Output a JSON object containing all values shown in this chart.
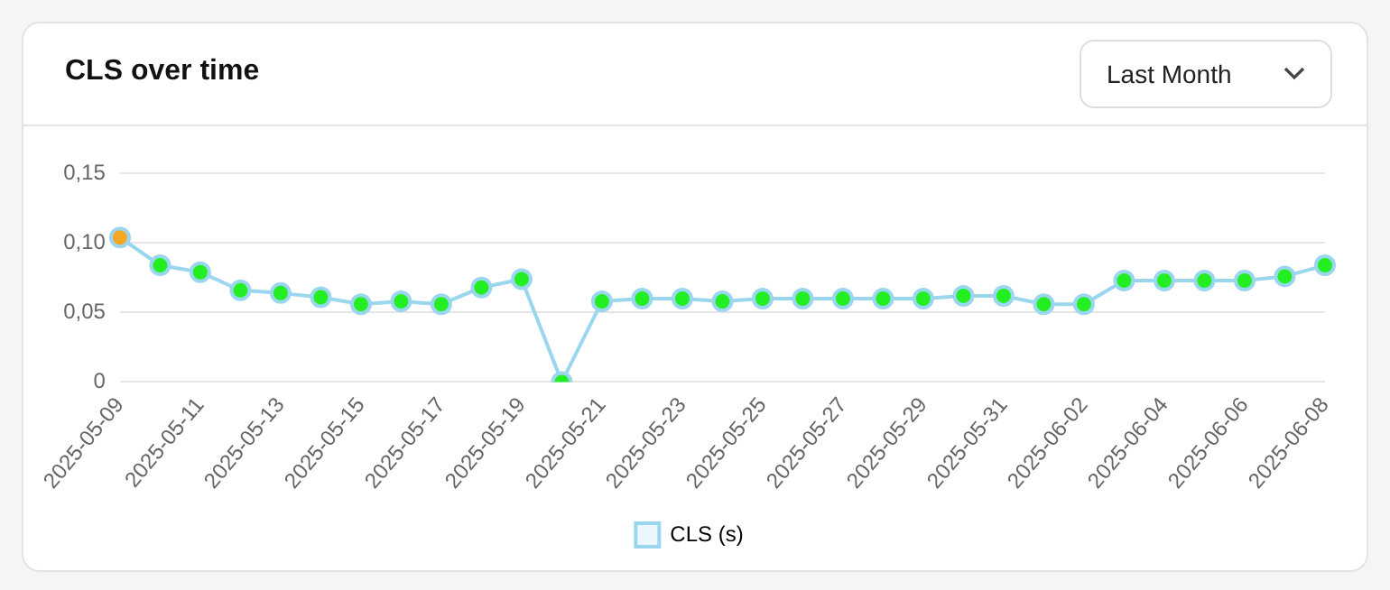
{
  "chart_data": {
    "type": "line",
    "title": "CLS over time",
    "annotations": [
      "Last Month"
    ],
    "categories": [
      "2025-05-09",
      null,
      "2025-05-11",
      null,
      "2025-05-13",
      null,
      "2025-05-15",
      null,
      "2025-05-17",
      null,
      "2025-05-19",
      null,
      "2025-05-21",
      null,
      "2025-05-23",
      null,
      "2025-05-25",
      null,
      "2025-05-27",
      null,
      "2025-05-29",
      null,
      "2025-05-31",
      null,
      "2025-06-02",
      null,
      "2025-06-04",
      null,
      "2025-06-06",
      null,
      "2025-06-08"
    ],
    "series": [
      {
        "name": "CLS (s)",
        "color": "#9ad6ee",
        "colors": [
          "#f5a623",
          "#22ee22",
          "#22ee22",
          "#22ee22",
          "#22ee22",
          "#22ee22",
          "#22ee22",
          "#22ee22",
          "#22ee22",
          "#22ee22",
          "#22ee22",
          "#22ee22",
          "#22ee22",
          "#22ee22",
          "#22ee22",
          "#22ee22",
          "#22ee22",
          "#22ee22",
          "#22ee22",
          "#22ee22",
          "#22ee22",
          "#22ee22",
          "#22ee22",
          "#22ee22",
          "#22ee22",
          "#22ee22",
          "#22ee22",
          "#22ee22",
          "#22ee22",
          "#22ee22",
          "#22ee22"
        ],
        "values": [
          0.104,
          0.084,
          0.079,
          0.066,
          0.064,
          0.061,
          0.056,
          0.058,
          0.056,
          0.068,
          0.074,
          0,
          0.058,
          0.06,
          0.06,
          0.058,
          0.06,
          0.06,
          0.06,
          0.06,
          0.06,
          0.062,
          0.062,
          0.056,
          0.056,
          0.073,
          0.073,
          0.073,
          0.073,
          0.076,
          0.084
        ]
      }
    ],
    "ylim": [
      0,
      0.15
    ],
    "yticks": [
      {
        "value": 0,
        "label": "0"
      },
      {
        "value": 0.05,
        "label": "0,05"
      },
      {
        "value": 0.1,
        "label": "0,10"
      },
      {
        "value": 0.15,
        "label": "0,15"
      }
    ],
    "grid": "y",
    "legend": "bottom",
    "marker": "circle",
    "line_style": "solid"
  }
}
